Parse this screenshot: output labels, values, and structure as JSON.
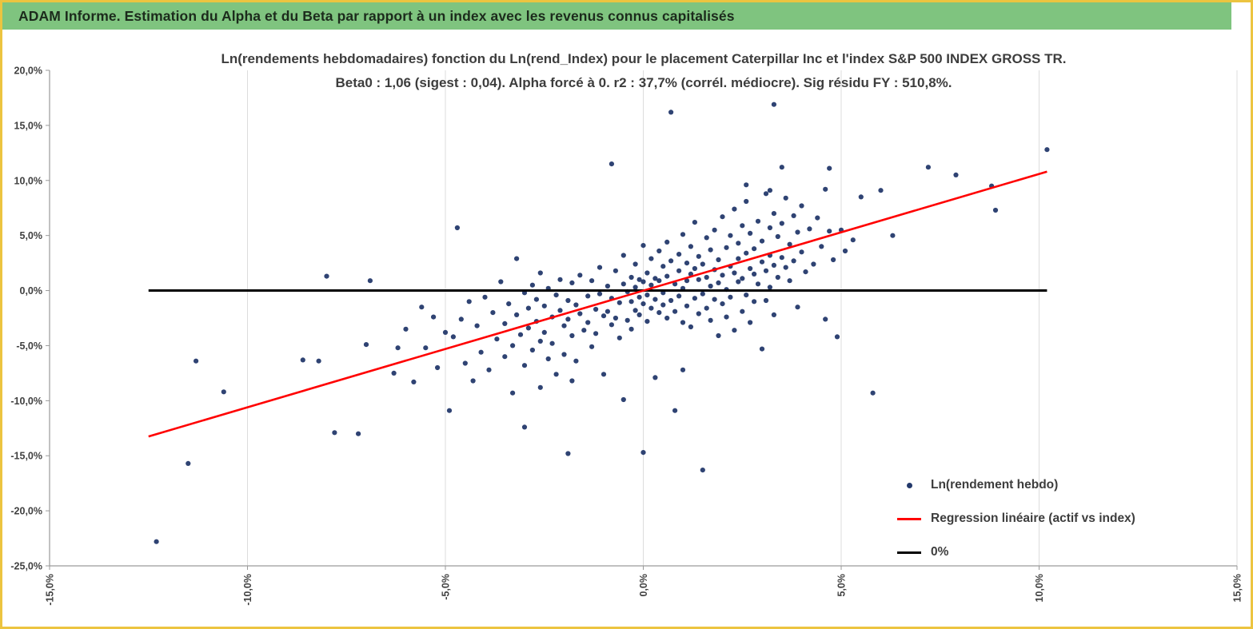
{
  "header": {
    "title": "ADAM Informe. Estimation du Alpha et du Beta par rapport à un index avec les revenus connus capitalisés",
    "bg_color": "#7fc47f"
  },
  "page": {
    "border_color": "#ecc440",
    "background": "#ffffff"
  },
  "chart_data": {
    "type": "scatter",
    "title_line1": "Ln(rendements hebdomadaires) fonction du Ln(rend_Index) pour le placement Caterpillar Inc et l'index S&P 500 INDEX GROSS TR.",
    "title_line2": "Beta0 : 1,06 (sigest : 0,04). Alpha forcé à 0. r2 : 37,7% (corrél. médiocre). Sig résidu FY : 510,8%.",
    "xlabel": "",
    "ylabel": "",
    "units": "percent",
    "xlim": [
      -15,
      15
    ],
    "ylim": [
      -25,
      20
    ],
    "x_ticks": [
      "-15,0%",
      "-10,0%",
      "-5,0%",
      "0,0%",
      "5,0%",
      "10,0%",
      "15,0%"
    ],
    "x_tick_values": [
      -15,
      -10,
      -5,
      0,
      5,
      10,
      15
    ],
    "y_ticks": [
      "20,0%",
      "15,0%",
      "10,0%",
      "5,0%",
      "0,0%",
      "-5,0%",
      "-10,0%",
      "-15,0%",
      "-20,0%",
      "-25,0%"
    ],
    "y_tick_values": [
      20,
      15,
      10,
      5,
      0,
      -5,
      -10,
      -15,
      -20,
      -25
    ],
    "grid_color": "#dcdcdc",
    "axis_color": "#9a9a9a",
    "legend": {
      "position": "inside-bottom-right"
    },
    "stats": {
      "beta0": "1,06",
      "sigest": "0,04",
      "alpha": "forcé à 0",
      "r2": "37,7%",
      "sig_residu_fy": "510,8%"
    },
    "series": [
      {
        "name": "Ln(rendement hebdo)",
        "type": "scatter",
        "color": "#24396b",
        "points": [
          [
            -12.3,
            -22.8
          ],
          [
            -11.5,
            -15.7
          ],
          [
            -11.3,
            -6.4
          ],
          [
            -10.6,
            -9.2
          ],
          [
            -8.6,
            -6.3
          ],
          [
            -8.2,
            -6.4
          ],
          [
            -8.0,
            1.3
          ],
          [
            -7.8,
            -12.9
          ],
          [
            -7.2,
            -13.0
          ],
          [
            -7.0,
            -4.9
          ],
          [
            -6.9,
            0.9
          ],
          [
            -6.3,
            -7.5
          ],
          [
            -6.2,
            -5.2
          ],
          [
            -6.0,
            -3.5
          ],
          [
            -5.8,
            -8.3
          ],
          [
            -5.6,
            -1.5
          ],
          [
            -5.5,
            -5.2
          ],
          [
            -5.3,
            -2.4
          ],
          [
            -5.2,
            -7.0
          ],
          [
            -5.0,
            -3.8
          ],
          [
            -4.9,
            -10.9
          ],
          [
            -4.8,
            -4.2
          ],
          [
            -4.7,
            5.7
          ],
          [
            -4.6,
            -2.6
          ],
          [
            -4.5,
            -6.6
          ],
          [
            -4.4,
            -1.0
          ],
          [
            -4.3,
            -8.2
          ],
          [
            -4.2,
            -3.2
          ],
          [
            -4.1,
            -5.6
          ],
          [
            -4.0,
            -0.6
          ],
          [
            -3.9,
            -7.2
          ],
          [
            -3.8,
            -2.0
          ],
          [
            -3.7,
            -4.4
          ],
          [
            -3.6,
            0.8
          ],
          [
            -3.5,
            -6.0
          ],
          [
            -3.5,
            -3.0
          ],
          [
            -3.4,
            -1.2
          ],
          [
            -3.3,
            -9.3
          ],
          [
            -3.3,
            -5.0
          ],
          [
            -3.2,
            2.9
          ],
          [
            -3.2,
            -2.2
          ],
          [
            -3.1,
            -4.0
          ],
          [
            -3.0,
            -12.4
          ],
          [
            -3.0,
            -0.2
          ],
          [
            -3.0,
            -6.8
          ],
          [
            -2.9,
            -1.6
          ],
          [
            -2.9,
            -3.4
          ],
          [
            -2.8,
            0.5
          ],
          [
            -2.8,
            -5.4
          ],
          [
            -2.7,
            -2.8
          ],
          [
            -2.7,
            -0.8
          ],
          [
            -2.6,
            -8.8
          ],
          [
            -2.6,
            -4.6
          ],
          [
            -2.6,
            1.6
          ],
          [
            -2.5,
            -3.8
          ],
          [
            -2.5,
            -1.4
          ],
          [
            -2.4,
            -6.2
          ],
          [
            -2.4,
            0.2
          ],
          [
            -2.3,
            -2.4
          ],
          [
            -2.3,
            -4.8
          ],
          [
            -2.2,
            -0.4
          ],
          [
            -2.2,
            -7.6
          ],
          [
            -2.1,
            -1.8
          ],
          [
            -2.1,
            1.0
          ],
          [
            -2.0,
            -3.2
          ],
          [
            -2.0,
            -5.8
          ],
          [
            -1.9,
            -14.8
          ],
          [
            -1.9,
            -0.9
          ],
          [
            -1.9,
            -2.6
          ],
          [
            -1.8,
            0.7
          ],
          [
            -1.8,
            -4.1
          ],
          [
            -1.8,
            -8.2
          ],
          [
            -1.7,
            -1.3
          ],
          [
            -1.7,
            -6.4
          ],
          [
            -1.6,
            -2.1
          ],
          [
            -1.6,
            1.4
          ],
          [
            -1.5,
            -3.6
          ],
          [
            -1.4,
            -0.5
          ],
          [
            -1.4,
            -2.9
          ],
          [
            -1.3,
            0.9
          ],
          [
            -1.3,
            -5.1
          ],
          [
            -1.2,
            -1.7
          ],
          [
            -1.2,
            -3.9
          ],
          [
            -1.1,
            2.1
          ],
          [
            -1.1,
            -0.3
          ],
          [
            -1.0,
            -2.3
          ],
          [
            -1.0,
            -7.6
          ],
          [
            -0.9,
            0.4
          ],
          [
            -0.9,
            -1.9
          ],
          [
            -0.8,
            11.5
          ],
          [
            -0.8,
            -3.1
          ],
          [
            -0.8,
            -0.7
          ],
          [
            -0.7,
            1.8
          ],
          [
            -0.7,
            -2.5
          ],
          [
            -0.6,
            -1.1
          ],
          [
            -0.6,
            -4.3
          ],
          [
            -0.5,
            0.6
          ],
          [
            -0.5,
            -9.9
          ],
          [
            -0.5,
            3.2
          ],
          [
            -0.4,
            -2.7
          ],
          [
            -0.4,
            -0.1
          ],
          [
            -0.3,
            1.2
          ],
          [
            -0.3,
            -3.5
          ],
          [
            -0.3,
            -1.0
          ],
          [
            -0.2,
            2.4
          ],
          [
            -0.2,
            -1.8
          ],
          [
            -0.2,
            0.3
          ],
          [
            -0.1,
            -2.2
          ],
          [
            -0.1,
            1.0
          ],
          [
            -0.1,
            -0.6
          ],
          [
            0.0,
            -14.7
          ],
          [
            0.0,
            4.1
          ],
          [
            0.0,
            -1.2
          ],
          [
            0.0,
            0.8
          ],
          [
            0.1,
            -2.8
          ],
          [
            0.1,
            1.6
          ],
          [
            0.1,
            -0.4
          ],
          [
            0.2,
            2.9
          ],
          [
            0.2,
            -1.6
          ],
          [
            0.2,
            0.5
          ],
          [
            0.3,
            -7.9
          ],
          [
            0.3,
            1.1
          ],
          [
            0.3,
            -0.8
          ],
          [
            0.4,
            3.6
          ],
          [
            0.4,
            -2.0
          ],
          [
            0.4,
            0.9
          ],
          [
            0.5,
            -1.3
          ],
          [
            0.5,
            2.2
          ],
          [
            0.5,
            -0.2
          ],
          [
            0.6,
            4.4
          ],
          [
            0.6,
            -2.5
          ],
          [
            0.6,
            1.3
          ],
          [
            0.7,
            16.2
          ],
          [
            0.7,
            -0.9
          ],
          [
            0.7,
            2.7
          ],
          [
            0.8,
            -10.9
          ],
          [
            0.8,
            0.6
          ],
          [
            0.8,
            -1.9
          ],
          [
            0.9,
            3.3
          ],
          [
            0.9,
            -0.5
          ],
          [
            0.9,
            1.8
          ],
          [
            1.0,
            -2.9
          ],
          [
            1.0,
            5.1
          ],
          [
            1.0,
            0.2
          ],
          [
            1.0,
            -7.2
          ],
          [
            1.1,
            -1.4
          ],
          [
            1.1,
            2.5
          ],
          [
            1.1,
            0.9
          ],
          [
            1.2,
            -3.3
          ],
          [
            1.2,
            4.0
          ],
          [
            1.2,
            1.5
          ],
          [
            1.3,
            -0.7
          ],
          [
            1.3,
            2.0
          ],
          [
            1.3,
            6.2
          ],
          [
            1.4,
            -2.1
          ],
          [
            1.4,
            1.0
          ],
          [
            1.4,
            3.1
          ],
          [
            1.5,
            -16.3
          ],
          [
            1.5,
            -0.3
          ],
          [
            1.5,
            2.4
          ],
          [
            1.6,
            4.8
          ],
          [
            1.6,
            -1.6
          ],
          [
            1.6,
            1.2
          ],
          [
            1.7,
            3.7
          ],
          [
            1.7,
            0.4
          ],
          [
            1.7,
            -2.7
          ],
          [
            1.8,
            5.5
          ],
          [
            1.8,
            1.9
          ],
          [
            1.8,
            -0.8
          ],
          [
            1.9,
            2.8
          ],
          [
            1.9,
            -4.1
          ],
          [
            1.9,
            0.7
          ],
          [
            2.0,
            6.7
          ],
          [
            2.0,
            1.4
          ],
          [
            2.0,
            -1.2
          ],
          [
            2.1,
            3.9
          ],
          [
            2.1,
            0.1
          ],
          [
            2.1,
            -2.4
          ],
          [
            2.2,
            5.0
          ],
          [
            2.2,
            2.2
          ],
          [
            2.2,
            -0.6
          ],
          [
            2.3,
            7.4
          ],
          [
            2.3,
            1.6
          ],
          [
            2.3,
            -3.6
          ],
          [
            2.4,
            4.3
          ],
          [
            2.4,
            0.8
          ],
          [
            2.4,
            2.9
          ],
          [
            2.5,
            -1.9
          ],
          [
            2.5,
            5.9
          ],
          [
            2.5,
            1.1
          ],
          [
            2.6,
            3.4
          ],
          [
            2.6,
            -0.4
          ],
          [
            2.6,
            8.1
          ],
          [
            2.6,
            9.6
          ],
          [
            2.7,
            2.0
          ],
          [
            2.7,
            -2.9
          ],
          [
            2.7,
            5.2
          ],
          [
            2.8,
            1.5
          ],
          [
            2.8,
            3.8
          ],
          [
            2.8,
            -1.0
          ],
          [
            2.9,
            6.3
          ],
          [
            2.9,
            0.6
          ],
          [
            3.0,
            2.6
          ],
          [
            3.0,
            -5.3
          ],
          [
            3.0,
            4.5
          ],
          [
            3.1,
            1.8
          ],
          [
            3.1,
            8.8
          ],
          [
            3.1,
            -0.9
          ],
          [
            3.2,
            9.1
          ],
          [
            3.2,
            3.2
          ],
          [
            3.2,
            5.7
          ],
          [
            3.2,
            0.3
          ],
          [
            3.3,
            16.9
          ],
          [
            3.3,
            7.0
          ],
          [
            3.3,
            2.3
          ],
          [
            3.3,
            -2.2
          ],
          [
            3.4,
            4.9
          ],
          [
            3.4,
            1.2
          ],
          [
            3.5,
            11.2
          ],
          [
            3.5,
            6.1
          ],
          [
            3.5,
            3.0
          ],
          [
            3.6,
            2.1
          ],
          [
            3.6,
            8.4
          ],
          [
            3.7,
            4.2
          ],
          [
            3.7,
            0.9
          ],
          [
            3.8,
            6.8
          ],
          [
            3.8,
            2.7
          ],
          [
            3.9,
            5.3
          ],
          [
            3.9,
            -1.5
          ],
          [
            4.0,
            3.5
          ],
          [
            4.0,
            7.7
          ],
          [
            4.1,
            1.7
          ],
          [
            4.2,
            5.6
          ],
          [
            4.3,
            2.4
          ],
          [
            4.4,
            6.6
          ],
          [
            4.5,
            4.0
          ],
          [
            4.6,
            9.2
          ],
          [
            4.6,
            -2.6
          ],
          [
            4.7,
            11.1
          ],
          [
            4.7,
            5.4
          ],
          [
            4.8,
            2.8
          ],
          [
            4.9,
            -4.2
          ],
          [
            5.0,
            5.5
          ],
          [
            5.1,
            3.6
          ],
          [
            5.3,
            4.6
          ],
          [
            5.5,
            8.5
          ],
          [
            5.8,
            -9.3
          ],
          [
            6.0,
            9.1
          ],
          [
            6.3,
            5.0
          ],
          [
            7.2,
            11.2
          ],
          [
            7.9,
            10.5
          ],
          [
            8.8,
            9.5
          ],
          [
            8.9,
            7.3
          ],
          [
            10.2,
            12.8
          ]
        ]
      },
      {
        "name": "Regression linéaire (actif vs index)",
        "type": "line",
        "color": "#ff0000",
        "points": [
          [
            -12.5,
            -13.25
          ],
          [
            10.2,
            10.8
          ]
        ]
      },
      {
        "name": "0%",
        "type": "line",
        "color": "#000000",
        "points": [
          [
            -12.5,
            0
          ],
          [
            10.2,
            0
          ]
        ]
      }
    ]
  }
}
